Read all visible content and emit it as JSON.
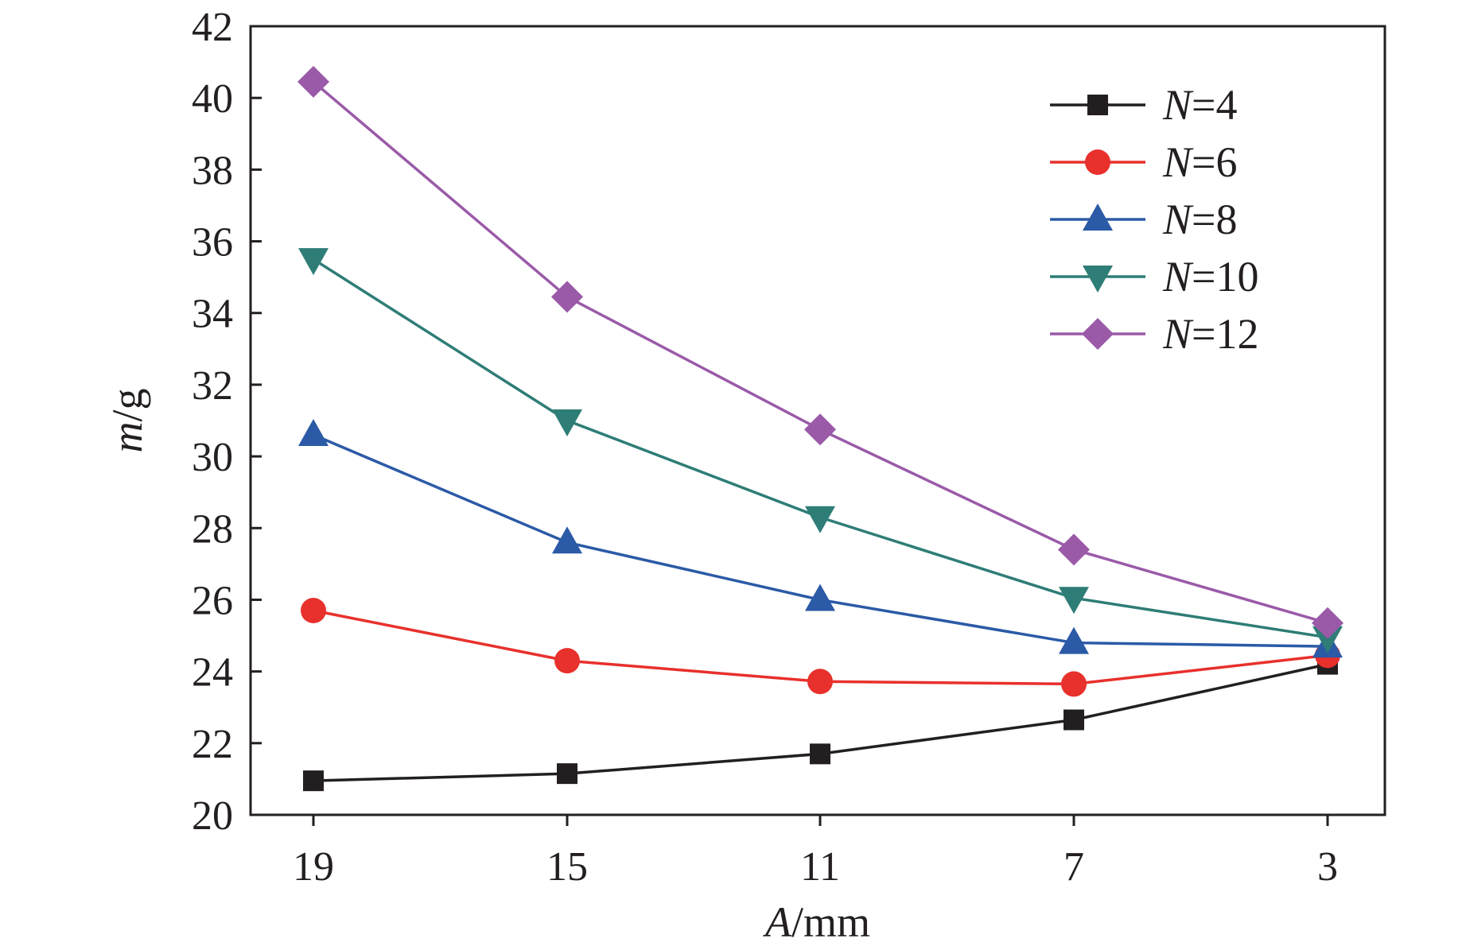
{
  "chart_data": {
    "type": "line",
    "title": "",
    "xlabel": {
      "var": "A",
      "unit": "/mm"
    },
    "ylabel": {
      "var": "m",
      "unit": "/g"
    },
    "categories": [
      "19",
      "15",
      "11",
      "7",
      "3"
    ],
    "ylim": [
      20,
      42
    ],
    "yticks": [
      "20",
      "22",
      "24",
      "26",
      "28",
      "30",
      "32",
      "34",
      "36",
      "38",
      "40",
      "42"
    ],
    "grid": false,
    "legend_position": "top-right",
    "series": [
      {
        "name": "N=4",
        "label_var": "N",
        "label_rest": "=4",
        "marker": "square",
        "color": "#231f20",
        "values": [
          20.95,
          21.15,
          21.7,
          22.65,
          24.2
        ]
      },
      {
        "name": "N=6",
        "label_var": "N",
        "label_rest": "=6",
        "marker": "circle",
        "color": "#e8302c",
        "values": [
          25.7,
          24.3,
          23.72,
          23.65,
          24.45
        ]
      },
      {
        "name": "N=8",
        "label_var": "N",
        "label_rest": "=8",
        "marker": "triangle-up",
        "color": "#2b5aa6",
        "values": [
          30.6,
          27.6,
          26.0,
          24.8,
          24.7
        ]
      },
      {
        "name": "N=10",
        "label_var": "N",
        "label_rest": "=10",
        "marker": "triangle-down",
        "color": "#2e7d76",
        "values": [
          35.5,
          31.0,
          28.3,
          26.05,
          24.95
        ]
      },
      {
        "name": "N=12",
        "label_var": "N",
        "label_rest": "=12",
        "marker": "diamond",
        "color": "#9a5aa8",
        "values": [
          40.45,
          34.45,
          30.75,
          27.4,
          25.35
        ]
      }
    ]
  }
}
